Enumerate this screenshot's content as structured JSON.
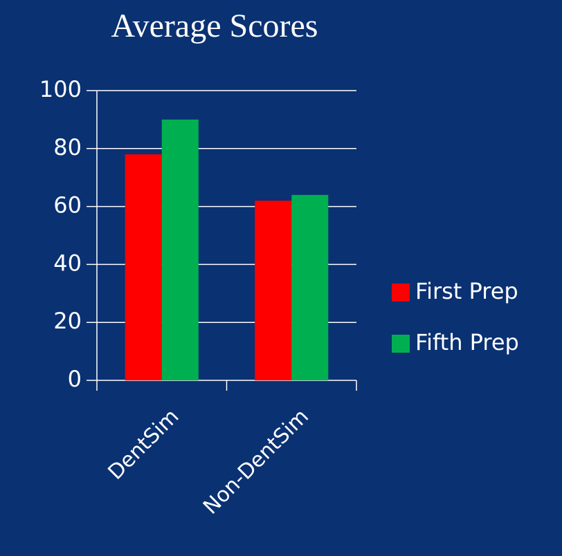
{
  "chart_data": {
    "type": "bar",
    "title": "Average Scores",
    "categories": [
      "DentSim",
      "Non-DentSim"
    ],
    "series": [
      {
        "name": "First Prep",
        "color": "#ff0000",
        "values": [
          78,
          62
        ]
      },
      {
        "name": "Fifth Prep",
        "color": "#00b050",
        "values": [
          90,
          64
        ]
      }
    ],
    "ylim": [
      0,
      100
    ],
    "yticks": [
      0,
      20,
      40,
      60,
      80,
      100
    ],
    "grid": true,
    "legend": "right"
  }
}
